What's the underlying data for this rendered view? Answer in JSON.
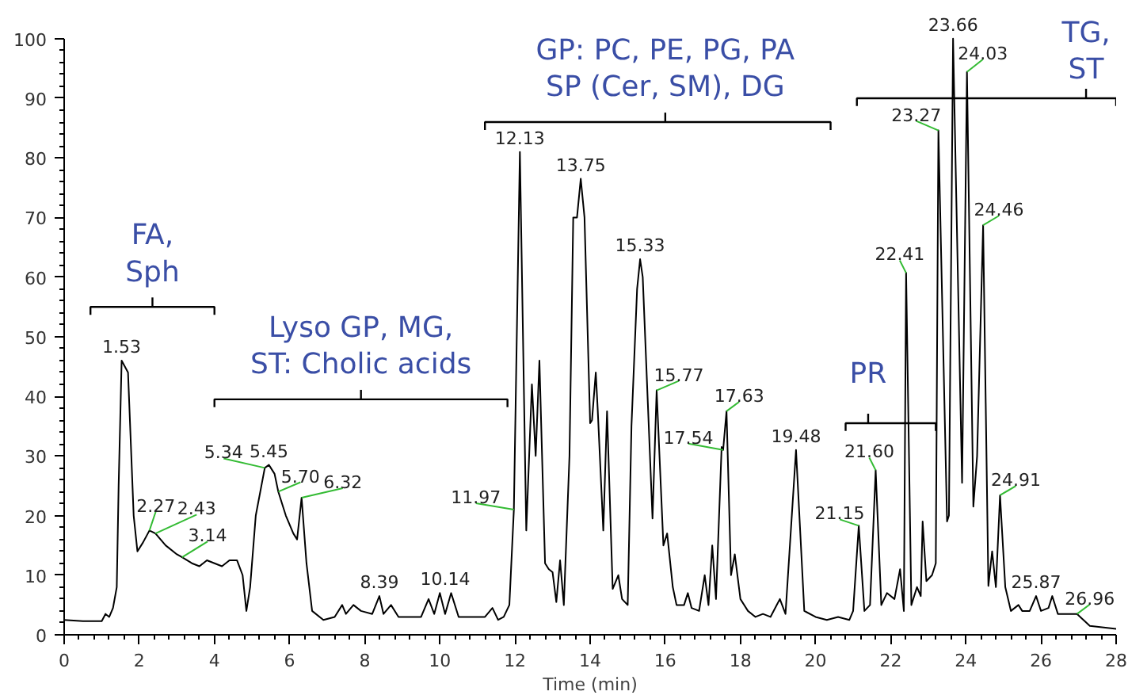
{
  "chart_data": {
    "type": "line",
    "xlabel": "Time (min)",
    "xlim": [
      0,
      28
    ],
    "xticks": [
      0,
      2,
      4,
      6,
      8,
      10,
      12,
      14,
      16,
      18,
      20,
      22,
      24,
      26,
      28
    ],
    "ylim": [
      0,
      100
    ],
    "yticks": [
      0,
      10,
      20,
      30,
      40,
      50,
      60,
      70,
      80,
      90,
      100
    ],
    "grid": false,
    "marker": "none",
    "line_style": "solid",
    "series": [
      {
        "color": "#000000",
        "x": [
          0,
          0.5,
          1.0,
          1.1,
          1.2,
          1.3,
          1.4,
          1.45,
          1.53,
          1.7,
          1.85,
          1.95,
          2.1,
          2.27,
          2.43,
          2.7,
          3.0,
          3.14,
          3.4,
          3.6,
          3.8,
          4.0,
          4.2,
          4.4,
          4.6,
          4.75,
          4.85,
          4.95,
          5.1,
          5.34,
          5.45,
          5.6,
          5.7,
          5.9,
          6.1,
          6.2,
          6.32,
          6.45,
          6.6,
          6.9,
          7.2,
          7.4,
          7.5,
          7.7,
          7.9,
          8.2,
          8.39,
          8.5,
          8.7,
          8.9,
          9.2,
          9.5,
          9.7,
          9.85,
          10.0,
          10.14,
          10.3,
          10.5,
          10.8,
          11.0,
          11.2,
          11.4,
          11.55,
          11.7,
          11.85,
          11.97,
          12.13,
          12.3,
          12.45,
          12.55,
          12.65,
          12.8,
          12.9,
          13.0,
          13.1,
          13.2,
          13.3,
          13.45,
          13.55,
          13.65,
          13.75,
          13.85,
          14.0,
          14.05,
          14.15,
          14.2,
          14.35,
          14.45,
          14.6,
          14.75,
          14.85,
          15.0,
          15.1,
          15.25,
          15.33,
          15.4,
          15.66,
          15.77,
          15.95,
          16.05,
          16.2,
          16.3,
          16.5,
          16.6,
          16.7,
          16.9,
          17.05,
          17.15,
          17.25,
          17.35,
          17.5,
          17.54,
          17.63,
          17.75,
          17.85,
          18.0,
          18.2,
          18.4,
          18.6,
          18.8,
          19.05,
          19.2,
          19.48,
          19.7,
          20.0,
          20.3,
          20.6,
          20.9,
          21.0,
          21.15,
          21.3,
          21.45,
          21.6,
          21.75,
          21.9,
          22.1,
          22.25,
          22.35,
          22.41,
          22.55,
          22.7,
          22.8,
          22.85,
          22.95,
          23.1,
          23.2,
          23.27,
          23.5,
          23.55,
          23.66,
          23.9,
          24.03,
          24.2,
          24.3,
          24.46,
          24.6,
          24.7,
          24.8,
          24.91,
          25.05,
          25.2,
          25.4,
          25.5,
          25.7,
          25.87,
          26.0,
          26.2,
          26.3,
          26.45,
          26.7,
          26.96,
          27.3,
          28
        ],
        "values": [
          2.5,
          2.3,
          2.3,
          3.5,
          3,
          4.5,
          8,
          25,
          46,
          44,
          20,
          14,
          15.5,
          17.5,
          17,
          15,
          13.5,
          13,
          12,
          11.5,
          12.5,
          12,
          11.5,
          12.5,
          12.5,
          10,
          4,
          8,
          20,
          28,
          28.5,
          27,
          24,
          20,
          17,
          16,
          23,
          12,
          4,
          2.5,
          3,
          5,
          3.5,
          5,
          4,
          3.5,
          6.5,
          3.5,
          5,
          3,
          3,
          3,
          6,
          3.5,
          7,
          3.5,
          7,
          3,
          3,
          3,
          3,
          4.5,
          2.5,
          3,
          5,
          21,
          81,
          17.5,
          42,
          30,
          46,
          12,
          11,
          10.5,
          5.5,
          12.5,
          5,
          30,
          70,
          70,
          76.5,
          70,
          35.5,
          36,
          44,
          38,
          17.5,
          37.5,
          7.7,
          10,
          6,
          5,
          35,
          58,
          63,
          60,
          19.5,
          41,
          15,
          17,
          8,
          5,
          5,
          7,
          4.5,
          4,
          10,
          5,
          15,
          6,
          31.5,
          31,
          37.5,
          10,
          13.5,
          6,
          4,
          3,
          3.5,
          3,
          6,
          3.5,
          31,
          4,
          3,
          2.5,
          3,
          2.5,
          4,
          18.3,
          4,
          5,
          27.6,
          5,
          7,
          6,
          11,
          4,
          60.7,
          5,
          8,
          6.5,
          19,
          9,
          10,
          12,
          84.6,
          19,
          20,
          100,
          25.5,
          94.4,
          21.5,
          30,
          68.7,
          8.2,
          14,
          8,
          23.4,
          8,
          4,
          5,
          4,
          4,
          6.5,
          4,
          4.5,
          6.5,
          3.5,
          3.5,
          3.5,
          1.5,
          1
        ]
      }
    ],
    "annotations": [
      {
        "text": "1.53",
        "x": 1.53,
        "y": 46
      },
      {
        "text": "2.27",
        "x": 2.27,
        "y": 17.5
      },
      {
        "text": "2.43",
        "x": 2.43,
        "y": 17
      },
      {
        "text": "3.14",
        "x": 3.14,
        "y": 13
      },
      {
        "text": "5.34",
        "x": 5.34,
        "y": 28
      },
      {
        "text": "5.45",
        "x": 5.45,
        "y": 28.5
      },
      {
        "text": "5.70",
        "x": 5.7,
        "y": 24
      },
      {
        "text": "6.32",
        "x": 6.32,
        "y": 23
      },
      {
        "text": "8.39",
        "x": 8.39,
        "y": 6.5
      },
      {
        "text": "10.14",
        "x": 10.14,
        "y": 7
      },
      {
        "text": "11.97",
        "x": 11.97,
        "y": 21
      },
      {
        "text": "12.13",
        "x": 12.13,
        "y": 81
      },
      {
        "text": "13.75",
        "x": 13.75,
        "y": 76.5
      },
      {
        "text": "15.33",
        "x": 15.33,
        "y": 63
      },
      {
        "text": "15.77",
        "x": 15.77,
        "y": 41
      },
      {
        "text": "17.54",
        "x": 17.54,
        "y": 31
      },
      {
        "text": "17.63",
        "x": 17.63,
        "y": 37.5
      },
      {
        "text": "19.48",
        "x": 19.48,
        "y": 31
      },
      {
        "text": "21.15",
        "x": 21.15,
        "y": 18.3
      },
      {
        "text": "21.60",
        "x": 21.6,
        "y": 27.6
      },
      {
        "text": "22.41",
        "x": 22.41,
        "y": 60.7
      },
      {
        "text": "23.27",
        "x": 23.27,
        "y": 84.6
      },
      {
        "text": "23.66",
        "x": 23.66,
        "y": 100
      },
      {
        "text": "24.03",
        "x": 24.03,
        "y": 94.4
      },
      {
        "text": "24.46",
        "x": 24.46,
        "y": 68.7
      },
      {
        "text": "24.91",
        "x": 24.91,
        "y": 23.4
      },
      {
        "text": "25.87",
        "x": 25.87,
        "y": 6.5
      },
      {
        "text": "26.96",
        "x": 26.96,
        "y": 3.5
      },
      "FA,\nSph",
      "Lyso GP, MG,\nST: Cholic acids",
      "GP: PC, PE, PG, PA\nSP (Cer, SM), DG",
      "PR",
      "TG,\nST"
    ]
  }
}
